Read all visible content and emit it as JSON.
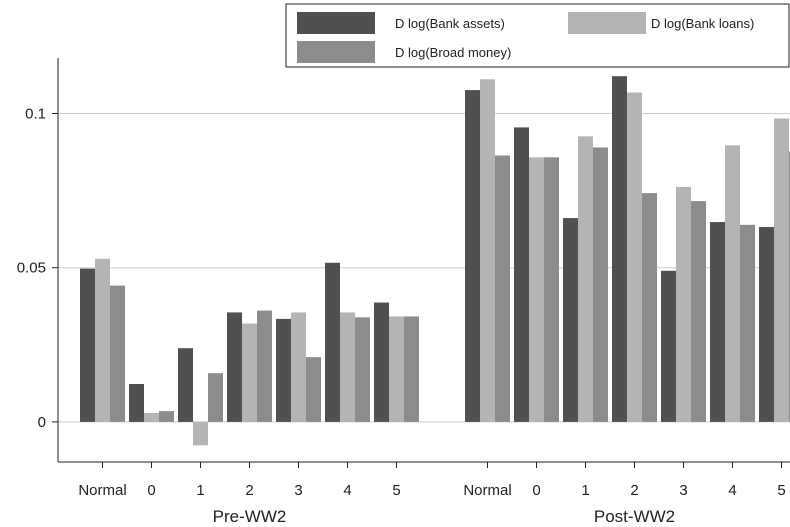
{
  "chart_data": {
    "type": "bar",
    "title": "",
    "xlabel": "",
    "ylabel": "",
    "ylim": [
      -0.013,
      0.118
    ],
    "yticks": [
      0,
      0.05,
      0.1
    ],
    "ytick_labels": [
      "0",
      "0.05",
      "0.1"
    ],
    "grid": true,
    "legend_position": "top-right",
    "colors": [
      "#505050",
      "#b4b4b4",
      "#8c8c8c"
    ],
    "groups": [
      {
        "label": "Pre-WW2",
        "categories": [
          "Normal",
          "0",
          "1",
          "2",
          "3",
          "4",
          "5"
        ],
        "series": [
          {
            "name": "D log(Bank assets)",
            "values": [
              0.0497,
              0.0123,
              0.0239,
              0.0355,
              0.0334,
              0.0516,
              0.0387
            ]
          },
          {
            "name": "D log(Bank loans)",
            "values": [
              0.0529,
              0.0029,
              -0.0076,
              0.0319,
              0.0355,
              0.0355,
              0.0342
            ]
          },
          {
            "name": "D log(Broad money)",
            "values": [
              0.0442,
              0.0035,
              0.0158,
              0.0361,
              0.021,
              0.0339,
              0.0342
            ]
          }
        ]
      },
      {
        "label": "Post-WW2",
        "categories": [
          "Normal",
          "0",
          "1",
          "2",
          "3",
          "4",
          "5"
        ],
        "series": [
          {
            "name": "D log(Bank assets)",
            "values": [
              0.1076,
              0.0955,
              0.0661,
              0.1121,
              0.049,
              0.0648,
              0.0632
            ]
          },
          {
            "name": "D log(Bank loans)",
            "values": [
              0.1111,
              0.0858,
              0.0926,
              0.1068,
              0.0762,
              0.0897,
              0.0984
            ]
          },
          {
            "name": "D log(Broad money)",
            "values": [
              0.0864,
              0.0858,
              0.089,
              0.0742,
              0.0716,
              0.0639,
              0.0877
            ]
          }
        ]
      }
    ]
  }
}
